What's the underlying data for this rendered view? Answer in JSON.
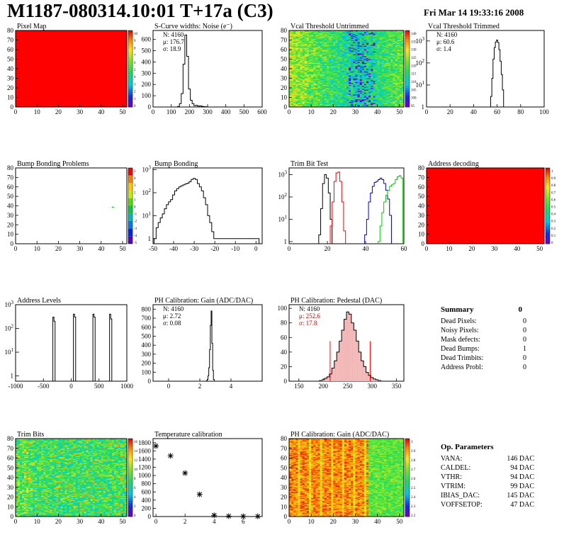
{
  "page": {
    "title": "M1187-080314.10:01 T+17a (C3)",
    "date": "Fri Mar 14 19:33:16 2008"
  },
  "chart_data": [
    {
      "id": "pixel-map",
      "type": "heatmap",
      "title": "Pixel Map",
      "colorscale": "solid-red",
      "xlim": [
        0,
        52
      ],
      "ylim": [
        0,
        80
      ],
      "xticks": [
        0,
        10,
        20,
        30,
        40,
        50
      ],
      "yticks": [
        0,
        10,
        20,
        30,
        40,
        50,
        60,
        70,
        80
      ],
      "zticks": [
        "10",
        "9",
        "8",
        "7",
        "6",
        "5",
        "4",
        "3",
        "2",
        "1",
        "0"
      ]
    },
    {
      "id": "scurve-noise",
      "type": "histogram",
      "title": "S-Curve widths: Noise (e⁻)",
      "xlim": [
        0,
        600
      ],
      "ylim": [
        0,
        680
      ],
      "xticks": [
        0,
        100,
        200,
        300,
        400,
        500,
        600
      ],
      "yticks": [
        0,
        100,
        200,
        300,
        400,
        500,
        600
      ],
      "x": [
        140,
        150,
        160,
        170,
        180,
        190,
        200,
        210,
        220,
        230,
        240,
        250,
        260,
        270,
        280,
        290
      ],
      "values": [
        5,
        30,
        120,
        380,
        640,
        450,
        160,
        60,
        30,
        12,
        15,
        8,
        10,
        6,
        3,
        2
      ],
      "stats": [
        "N: 4160",
        "μ: 176.7",
        "σ: 18.9"
      ]
    },
    {
      "id": "vcal-untrimmed",
      "type": "heatmap",
      "title": "Vcal Threshold Untrimmed",
      "colorscale": "rainbow",
      "xlim": [
        0,
        52
      ],
      "ylim": [
        0,
        80
      ],
      "xticks": [
        0,
        10,
        20,
        30,
        40,
        50
      ],
      "yticks": [
        0,
        10,
        20,
        30,
        40,
        50,
        60,
        70,
        80
      ],
      "zticks": [
        "140",
        "135",
        "130",
        "125",
        "120",
        "115",
        "110",
        "105",
        "100",
        "95"
      ]
    },
    {
      "id": "vcal-trimmed",
      "type": "histogram",
      "title": "Vcal Threshold Trimmed",
      "log": true,
      "xlim": [
        0,
        100
      ],
      "ylim": [
        1,
        3000
      ],
      "xticks": [
        0,
        20,
        40,
        60,
        80,
        100
      ],
      "x": [
        55,
        56,
        57,
        58,
        59,
        60,
        61,
        62,
        63,
        64,
        65,
        66
      ],
      "values": [
        3,
        20,
        150,
        500,
        900,
        1100,
        850,
        400,
        120,
        30,
        6,
        1
      ],
      "stats": [
        "N: 4160",
        "μ: 60.6",
        "σ: 1.4"
      ]
    },
    {
      "id": "bump-problems",
      "type": "heatmap",
      "title": "Bump Bonding Problems",
      "colorscale": "sparse",
      "xlim": [
        0,
        52
      ],
      "ylim": [
        0,
        80
      ],
      "xticks": [
        0,
        10,
        20,
        30,
        40,
        50
      ],
      "yticks": [
        0,
        10,
        20,
        30,
        40,
        50,
        60,
        70,
        80
      ],
      "zticks": [
        "5",
        "4",
        "3",
        "2",
        "1",
        "0",
        "-1",
        "-2",
        "-3",
        "-4",
        "-5"
      ],
      "points": [
        {
          "x": 45,
          "y": 38
        }
      ]
    },
    {
      "id": "bump-bonding",
      "type": "histogram",
      "title": "Bump Bonding",
      "log": true,
      "xlim": [
        -50,
        3
      ],
      "ylim": [
        0.6,
        1200
      ],
      "xticks": [
        -50,
        -40,
        -30,
        -20,
        -10,
        0
      ],
      "x": [
        -49,
        -48,
        -47,
        -46,
        -45,
        -44,
        -43,
        -42,
        -41,
        -40,
        -39,
        -38,
        -37,
        -36,
        -35,
        -34,
        -33,
        -32,
        -31,
        -30,
        -29,
        -28,
        -27,
        -26,
        -25,
        -24,
        -23,
        -22,
        -21,
        -20,
        -19,
        1
      ],
      "values": [
        1,
        3,
        5,
        8,
        12,
        20,
        30,
        40,
        50,
        80,
        120,
        150,
        180,
        200,
        220,
        240,
        260,
        300,
        380,
        420,
        380,
        250,
        180,
        120,
        60,
        30,
        10,
        5,
        2,
        1,
        1,
        1
      ]
    },
    {
      "id": "trim-bit-test",
      "type": "histogram",
      "title": "Trim Bit Test",
      "log": true,
      "xlim": [
        0,
        60
      ],
      "ylim": [
        0.8,
        2000
      ],
      "xticks": [
        0,
        20,
        40,
        60
      ],
      "series": [
        {
          "color": "#000000",
          "x": [
            16,
            17,
            18,
            19,
            20,
            21,
            22
          ],
          "values": [
            2,
            30,
            400,
            1000,
            700,
            150,
            10
          ]
        },
        {
          "color": "#ff0000",
          "x": [
            22,
            23,
            24,
            25,
            26,
            27,
            28,
            29
          ],
          "values": [
            5,
            60,
            500,
            1200,
            1300,
            500,
            60,
            3
          ]
        },
        {
          "color": "#0000cc",
          "x": [
            40,
            41,
            42,
            43,
            44,
            45,
            46,
            47,
            48,
            49,
            50,
            51,
            52,
            53
          ],
          "values": [
            2,
            10,
            60,
            150,
            300,
            450,
            500,
            600,
            700,
            600,
            400,
            200,
            80,
            15
          ]
        },
        {
          "color": "#00cc00",
          "x": [
            47,
            48,
            49,
            50,
            51,
            52,
            53,
            54,
            55,
            56,
            57,
            58,
            59
          ],
          "values": [
            1,
            5,
            20,
            60,
            120,
            200,
            300,
            350,
            400,
            600,
            800,
            900,
            700
          ]
        }
      ]
    },
    {
      "id": "address-decoding",
      "type": "heatmap",
      "title": "Address decoding",
      "colorscale": "solid-red",
      "xlim": [
        0,
        52
      ],
      "ylim": [
        0,
        80
      ],
      "xticks": [
        0,
        10,
        20,
        30,
        40,
        50
      ],
      "yticks": [
        0,
        10,
        20,
        30,
        40,
        50,
        60,
        70,
        80
      ],
      "zticks": [
        "1",
        "0.9",
        "0.8",
        "0.7",
        "0.6",
        "0.5",
        "0.4",
        "0.3",
        "0.2",
        "0.1",
        "0"
      ]
    },
    {
      "id": "address-levels",
      "type": "histogram",
      "title": "Address Levels",
      "log": true,
      "xlim": [
        -1000,
        1000
      ],
      "ylim": [
        0.6,
        1000
      ],
      "xticks": [
        -1000,
        -500,
        0,
        500,
        1000
      ],
      "x": [
        -320,
        -300,
        50,
        70,
        400,
        420,
        700,
        720
      ],
      "values": [
        300,
        200,
        400,
        300,
        400,
        300,
        400,
        250
      ]
    },
    {
      "id": "ph-gain",
      "type": "histogram",
      "title": "PH Calibration: Gain (ADC/DAC)",
      "xlim": [
        -1,
        6
      ],
      "ylim": [
        0,
        850
      ],
      "xticks": [
        0,
        2,
        4
      ],
      "yticks": [
        0,
        100,
        200,
        300,
        400,
        500,
        600,
        700,
        800
      ],
      "x": [
        2.45,
        2.5,
        2.55,
        2.6,
        2.65,
        2.7,
        2.75,
        2.8,
        2.85,
        2.9
      ],
      "values": [
        5,
        20,
        60,
        150,
        350,
        620,
        780,
        420,
        120,
        20
      ],
      "stats": [
        "N: 4160",
        "μ: 2.72",
        "σ: 0.08"
      ]
    },
    {
      "id": "ph-pedestal",
      "type": "histogram",
      "title": "PH Calibration: Pedestal (DAC)",
      "xlim": [
        130,
        365
      ],
      "ylim": [
        0,
        105
      ],
      "xticks": [
        150,
        200,
        250,
        300,
        350
      ],
      "yticks": [
        0,
        20,
        40,
        60,
        80,
        100
      ],
      "x": [
        195,
        200,
        205,
        210,
        215,
        220,
        225,
        230,
        235,
        240,
        245,
        250,
        255,
        260,
        265,
        270,
        275,
        280,
        285,
        290,
        295,
        300,
        305,
        310,
        315
      ],
      "values": [
        1,
        2,
        4,
        6,
        10,
        18,
        28,
        40,
        55,
        70,
        85,
        95,
        92,
        80,
        70,
        55,
        40,
        28,
        20,
        12,
        8,
        5,
        3,
        2,
        1
      ],
      "fit_band": [
        214,
        296
      ],
      "stats": [
        "N: 4160",
        "μ: 252.6",
        "σ: 17.8"
      ]
    },
    {
      "id": "summary",
      "type": "table",
      "title": "Summary",
      "title_value": "0",
      "rows": [
        [
          "Dead Pixels:",
          "0"
        ],
        [
          "Noisy Pixels:",
          "0"
        ],
        [
          "Mask defects:",
          "0"
        ],
        [
          "Dead Bumps:",
          "1"
        ],
        [
          "Dead Trimbits:",
          "0"
        ],
        [
          "Address Probl:",
          "0"
        ]
      ]
    },
    {
      "id": "trim-bits",
      "type": "heatmap",
      "title": "Trim Bits",
      "colorscale": "rainbow-trim",
      "xlim": [
        0,
        52
      ],
      "ylim": [
        0,
        80
      ],
      "xticks": [
        0,
        10,
        20,
        30,
        40,
        50
      ],
      "yticks": [
        0,
        10,
        20,
        30,
        40,
        50,
        60,
        70,
        80
      ],
      "zticks": [
        "16",
        "14",
        "12",
        "10",
        "8",
        "6",
        "4",
        "2",
        "0"
      ]
    },
    {
      "id": "temp-calibration",
      "type": "scatter",
      "title": "Temperature calibration",
      "xlim": [
        -0.2,
        7.3
      ],
      "ylim": [
        0,
        1900
      ],
      "xticks": [
        0,
        2,
        4,
        6
      ],
      "yticks": [
        0,
        200,
        400,
        600,
        800,
        1000,
        1200,
        1400,
        1600,
        1800
      ],
      "x": [
        0,
        1,
        2,
        3,
        4,
        5,
        6,
        7
      ],
      "values": [
        1720,
        1480,
        1060,
        540,
        30,
        10,
        5,
        5
      ]
    },
    {
      "id": "ph-gain-map",
      "type": "heatmap",
      "title": "PH Calibration: Gain (ADC/DAC)",
      "colorscale": "gain",
      "xlim": [
        0,
        52
      ],
      "ylim": [
        0,
        80
      ],
      "xticks": [
        0,
        10,
        20,
        30,
        40,
        50
      ],
      "yticks": [
        0,
        10,
        20,
        30,
        40,
        50,
        60,
        70,
        80
      ],
      "zticks": [
        "3",
        "2.9",
        "2.8",
        "2.7",
        "2.6",
        "2.5",
        "2.4",
        "2.3",
        "2.2"
      ]
    },
    {
      "id": "op-parameters",
      "type": "table",
      "title": "Op. Parameters",
      "rows": [
        [
          "VANA:",
          "146 DAC"
        ],
        [
          "CALDEL:",
          "94 DAC"
        ],
        [
          "VTHR:",
          "94 DAC"
        ],
        [
          "VTRIM:",
          "99 DAC"
        ],
        [
          "IBIAS_DAC:",
          "145 DAC"
        ],
        [
          "VOFFSETOP:",
          "47 DAC"
        ]
      ]
    }
  ]
}
